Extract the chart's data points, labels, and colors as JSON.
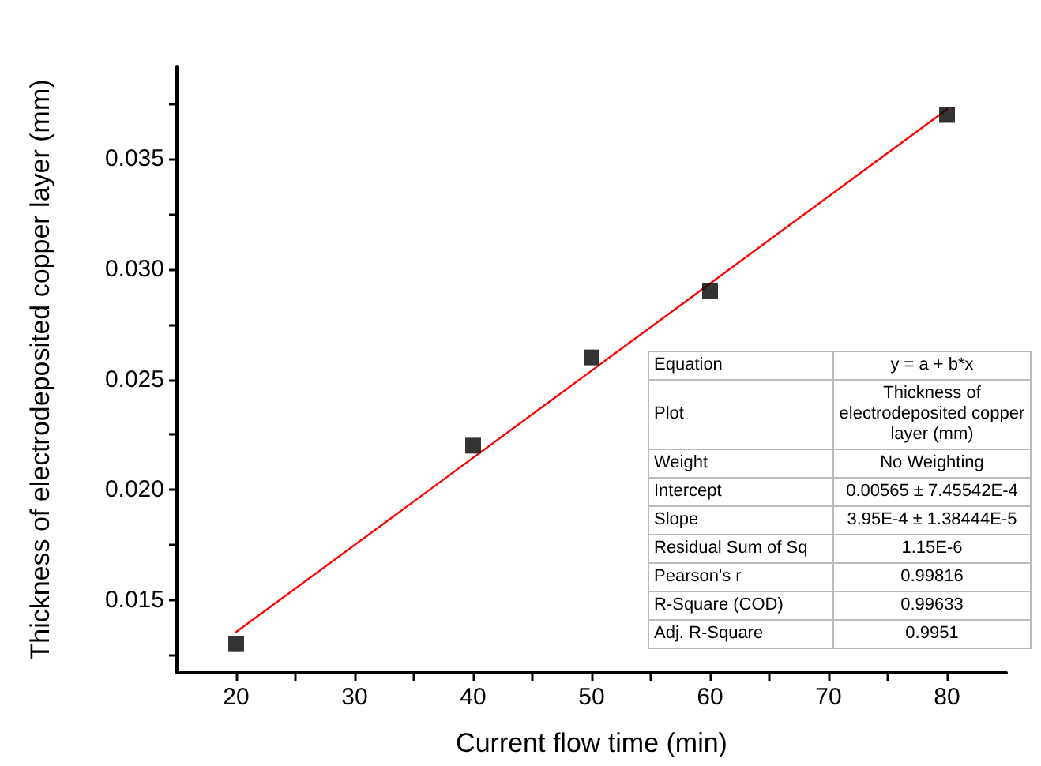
{
  "chart_data": {
    "type": "scatter",
    "xlabel": "Current flow time (min)",
    "ylabel": "Thickness of electrodeposited copper layer (mm)",
    "xlim": [
      15,
      85
    ],
    "ylim": [
      0.0117,
      0.0392
    ],
    "xticks": [
      20,
      {
        "value": 25,
        "label": null
      },
      30,
      {
        "value": 35,
        "label": null
      },
      40,
      {
        "value": 45,
        "label": null
      },
      50,
      {
        "value": 55,
        "label": null
      },
      60,
      {
        "value": 65,
        "label": null
      },
      70,
      {
        "value": 75,
        "label": null
      },
      80
    ],
    "yticks": [
      {
        "value": 0.0125,
        "label": null
      },
      0.015,
      {
        "value": 0.0175,
        "label": null
      },
      {
        "value": 0.02,
        "label": "0.020"
      },
      {
        "value": 0.0225,
        "label": null
      },
      0.025,
      {
        "value": 0.0275,
        "label": null
      },
      {
        "value": 0.03,
        "label": "0.030"
      },
      {
        "value": 0.0325,
        "label": null
      },
      0.035,
      {
        "value": 0.0375,
        "label": null
      }
    ],
    "grid": false,
    "marker": "square",
    "series": [
      {
        "color": "#000000",
        "x": [
          20,
          40,
          50,
          60,
          80
        ],
        "values": [
          0.013,
          0.022,
          0.026,
          0.029,
          0.037
        ]
      },
      {
        "type": "line",
        "color": "#ff0000",
        "marker": "none",
        "line_style": "solid",
        "x": [
          20,
          80
        ],
        "values": [
          0.01355,
          0.03725
        ]
      }
    ],
    "annotations": [
      "Equation",
      "y = a + b*x",
      "Plot",
      "Thickness of electrodeposited copper layer (mm)",
      "Weight",
      "No Weighting",
      "Intercept",
      "0.00565 ± 7.45542E-4",
      "Slope",
      "3.95E-4 ± 1.38444E-5",
      "Residual Sum of Sq",
      "1.15E-6",
      "Pearson's r",
      "0.99816",
      "R-Square (COD)",
      "0.99633",
      "Adj. R-Square",
      "0.9951"
    ]
  }
}
